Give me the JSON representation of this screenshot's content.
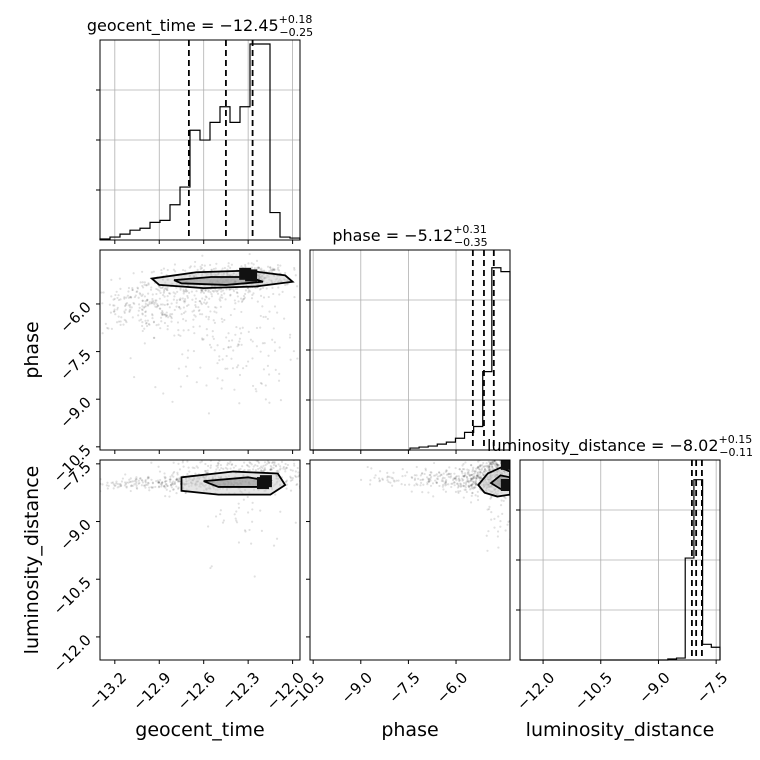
{
  "chart_data": {
    "type": "corner",
    "parameters": [
      {
        "name": "geocent_time",
        "xlabel": "geocent_time",
        "title": {
          "base": "geocent_time = −12.45",
          "sup": "+0.18",
          "sub": "−0.25"
        },
        "range": [
          -13.3,
          -11.95
        ],
        "ticks": [
          "−13.2",
          "−12.9",
          "−12.6",
          "−12.3",
          "−12.0"
        ],
        "tick_values": [
          -13.2,
          -12.9,
          -12.6,
          -12.3,
          -12.0
        ],
        "quantiles": [
          -12.7,
          -12.45,
          -12.27
        ],
        "hist": [
          0.005,
          0.015,
          0.03,
          0.05,
          0.06,
          0.09,
          0.1,
          0.18,
          0.27,
          0.56,
          0.51,
          0.6,
          0.68,
          0.6,
          0.68,
          1.07,
          1.03,
          0.14,
          0.015,
          0.01
        ]
      },
      {
        "name": "phase",
        "ylabel": "phase",
        "xlabel": "phase",
        "title": {
          "base": "phase = −5.12",
          "sup": "+0.31",
          "sub": "−0.35"
        },
        "range": [
          -10.6,
          -4.3
        ],
        "ticks": [
          "−10.5",
          "−9.0",
          "−7.5",
          "−6.0"
        ],
        "tick_values": [
          -10.5,
          -9.0,
          -7.5,
          -6.0
        ],
        "quantiles": [
          -5.47,
          -5.12,
          -4.81
        ],
        "hist": [
          0,
          0,
          0,
          0,
          0,
          0,
          0,
          0,
          0,
          0,
          0,
          0.01,
          0.015,
          0.02,
          0.03,
          0.04,
          0.06,
          0.09,
          0.12,
          0.4,
          0.93,
          0.91
        ]
      },
      {
        "name": "luminosity_distance",
        "ylabel": "luminosity_distance",
        "xlabel": "luminosity_distance",
        "title": {
          "base": "luminosity_distance = −8.02",
          "sup": "+0.15",
          "sub": "−0.11"
        },
        "range": [
          -12.6,
          -7.4
        ],
        "ticks": [
          "−12.0",
          "−10.5",
          "−9.0",
          "−7.5"
        ],
        "tick_values": [
          -12.0,
          -10.5,
          -9.0,
          -7.5
        ],
        "quantiles": [
          -8.13,
          -8.02,
          -7.87
        ],
        "hist": [
          0,
          0,
          0,
          0,
          0,
          0,
          0,
          0,
          0,
          0,
          0,
          0,
          0,
          0,
          0,
          0,
          0,
          0.005,
          0.01,
          0.52,
          0.92,
          0.08,
          0.065
        ]
      }
    ],
    "scatter": [
      {
        "x_param": "geocent_time",
        "y_param": "phase",
        "clusters": [
          {
            "cx": -12.5,
            "cy": -5.3,
            "sx": 0.25,
            "sy": 0.25,
            "n": 420
          },
          {
            "cx": -12.95,
            "cy": -6.1,
            "sx": 0.25,
            "sy": 0.4,
            "n": 280
          },
          {
            "cx": -12.45,
            "cy": -7.0,
            "sx": 0.25,
            "sy": 1.1,
            "n": 180
          },
          {
            "cx": -12.25,
            "cy": -5.1,
            "sx": 0.1,
            "sy": 0.15,
            "n": 160
          }
        ],
        "contours": [
          [
            [
              -12.95,
              -5.2
            ],
            [
              -12.65,
              -5.0
            ],
            [
              -12.3,
              -4.95
            ],
            [
              -12.05,
              -5.1
            ],
            [
              -12.0,
              -5.3
            ],
            [
              -12.25,
              -5.45
            ],
            [
              -12.6,
              -5.5
            ],
            [
              -12.9,
              -5.4
            ]
          ],
          [
            [
              -12.8,
              -5.25
            ],
            [
              -12.55,
              -5.15
            ],
            [
              -12.3,
              -5.15
            ],
            [
              -12.2,
              -5.3
            ],
            [
              -12.45,
              -5.4
            ],
            [
              -12.75,
              -5.35
            ]
          ]
        ],
        "dense": [
          [
            -12.28,
            -5.1
          ],
          [
            -12.32,
            -5.05
          ]
        ]
      },
      {
        "x_param": "geocent_time",
        "y_param": "luminosity_distance",
        "clusters": [
          {
            "cx": -12.45,
            "cy": -8.0,
            "sx": 0.3,
            "sy": 0.12,
            "n": 380
          },
          {
            "cx": -13.0,
            "cy": -8.0,
            "sx": 0.25,
            "sy": 0.08,
            "n": 150
          },
          {
            "cx": -12.3,
            "cy": -7.55,
            "sx": 0.25,
            "sy": 0.15,
            "n": 180
          },
          {
            "cx": -12.3,
            "cy": -8.9,
            "sx": 0.15,
            "sy": 0.6,
            "n": 40
          }
        ],
        "contours": [
          [
            [
              -12.75,
              -7.85
            ],
            [
              -12.4,
              -7.7
            ],
            [
              -12.1,
              -7.75
            ],
            [
              -12.05,
              -8.05
            ],
            [
              -12.15,
              -8.3
            ],
            [
              -12.5,
              -8.3
            ],
            [
              -12.75,
              -8.2
            ]
          ],
          [
            [
              -12.6,
              -7.95
            ],
            [
              -12.3,
              -7.85
            ],
            [
              -12.15,
              -7.95
            ],
            [
              -12.2,
              -8.1
            ],
            [
              -12.5,
              -8.1
            ]
          ]
        ],
        "dense": [
          [
            -12.2,
            -8.0
          ],
          [
            -12.18,
            -7.95
          ]
        ]
      },
      {
        "x_param": "phase",
        "y_param": "luminosity_distance",
        "clusters": [
          {
            "cx": -5.0,
            "cy": -7.9,
            "sx": 0.5,
            "sy": 0.2,
            "n": 380
          },
          {
            "cx": -6.5,
            "cy": -7.9,
            "sx": 1.1,
            "sy": 0.15,
            "n": 220
          },
          {
            "cx": -4.6,
            "cy": -7.5,
            "sx": 0.3,
            "sy": 0.15,
            "n": 160
          },
          {
            "cx": -4.6,
            "cy": -8.7,
            "sx": 0.3,
            "sy": 0.5,
            "n": 50
          }
        ],
        "contours": [
          [
            [
              -5.3,
              -8.05
            ],
            [
              -5.0,
              -7.75
            ],
            [
              -4.6,
              -7.6
            ],
            [
              -4.3,
              -7.7
            ],
            [
              -4.3,
              -8.3
            ],
            [
              -4.7,
              -8.35
            ],
            [
              -5.1,
              -8.25
            ]
          ],
          [
            [
              -4.9,
              -8.0
            ],
            [
              -4.6,
              -7.8
            ],
            [
              -4.3,
              -7.85
            ],
            [
              -4.3,
              -8.15
            ],
            [
              -4.6,
              -8.15
            ]
          ]
        ],
        "dense": [
          [
            -4.4,
            -8.05
          ],
          [
            -4.4,
            -7.5
          ]
        ]
      }
    ]
  }
}
